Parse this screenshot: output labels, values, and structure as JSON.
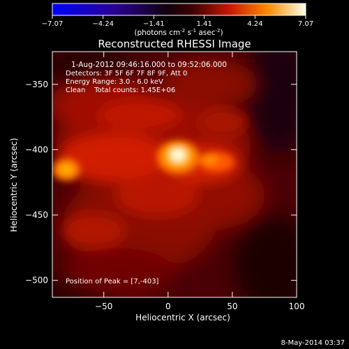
{
  "colors": {
    "background": "#000000",
    "text": "#ffffff",
    "colormap": [
      "#0000ff",
      "#1a00a0",
      "#000000",
      "#5a0008",
      "#c01a00",
      "#ff6a00",
      "#ffc000",
      "#ffffe0"
    ]
  },
  "footer": {
    "timestamp": "8-May-2014 03:37"
  },
  "colorbar": {
    "min": -7.07,
    "max": 7.07,
    "ticks": [
      "-7.07",
      "-4.24",
      "-1.41",
      "1.41",
      "4.24",
      "7.07"
    ],
    "unit_main": "(photons cm",
    "unit_exp1": "-2",
    "unit_mid": " s",
    "unit_exp2": "-1",
    "unit_end": " asec",
    "unit_exp3": "-2",
    "unit_close": ")"
  },
  "chart_data": {
    "type": "heatmap",
    "title": "Reconstructed RHESSI Image",
    "xlabel": "Heliocentric X (arcsec)",
    "ylabel": "Heliocentric Y (arcsec)",
    "xlim": [
      -90,
      100
    ],
    "ylim": [
      -513,
      -325
    ],
    "xticks": [
      -50,
      0,
      50,
      100
    ],
    "yticks": [
      -350,
      -400,
      -450,
      -500
    ],
    "annotations": [
      "1-Aug-2012 09:46:16.000 to 09:52:06.000",
      "Detectors: 3F 5F 6F 7F 8F 9F, Att 0",
      "Energy Range: 3.0 - 6.0 keV",
      "Clean    Total counts: 1.45E+06"
    ],
    "peak_label": "Position of Peak = [7,-403]",
    "peak": [
      7,
      -403
    ]
  }
}
